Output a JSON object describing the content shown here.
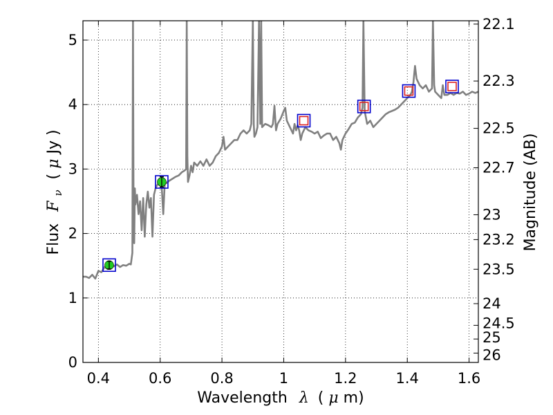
{
  "chart_data": {
    "type": "line",
    "xlabel": "Wavelength",
    "xlabel_math": "λ",
    "xlabel_unit_open": "(",
    "xlabel_unit_mu": "μ",
    "xlabel_unit_close": "m)",
    "ylabel": "Flux",
    "ylabel_math": "F",
    "ylabel_math_sub": "ν",
    "ylabel_unit_open": "( ",
    "ylabel_unit_mu": "μ",
    "ylabel_unit_close": "Jy )",
    "y2label": "Magnitude (AB)",
    "xlim": [
      0.35,
      1.63
    ],
    "ylim": [
      0,
      5.3
    ],
    "grid": true,
    "x_ticks": [
      0.4,
      0.6,
      0.8,
      1.0,
      1.2,
      1.4,
      1.6
    ],
    "x_tick_labels": [
      "0.4",
      "0.6",
      "0.8",
      "1",
      "1.2",
      "1.4",
      "1.6"
    ],
    "y_ticks": [
      0,
      1,
      2,
      3,
      4,
      5
    ],
    "y_tick_labels": [
      "0",
      "1",
      "2",
      "3",
      "4",
      "5"
    ],
    "y2_tick_labels": [
      "22.1",
      "22.3",
      "22.5",
      "22.7",
      "23",
      "23.2",
      "23.5",
      "24",
      "24.5",
      "25",
      "26"
    ],
    "y2_tick_magnitudes": [
      22.1,
      22.3,
      22.5,
      22.7,
      23.0,
      23.2,
      23.5,
      24.0,
      24.5,
      25.0,
      26.0
    ],
    "series": [
      {
        "color": "#808080",
        "points": [
          [
            0.35,
            1.33
          ],
          [
            0.36,
            1.33
          ],
          [
            0.37,
            1.31
          ],
          [
            0.38,
            1.36
          ],
          [
            0.39,
            1.3
          ],
          [
            0.4,
            1.42
          ],
          [
            0.41,
            1.4
          ],
          [
            0.42,
            1.48
          ],
          [
            0.43,
            1.45
          ],
          [
            0.44,
            1.52
          ],
          [
            0.45,
            1.49
          ],
          [
            0.46,
            1.52
          ],
          [
            0.47,
            1.48
          ],
          [
            0.48,
            1.51
          ],
          [
            0.49,
            1.5
          ],
          [
            0.5,
            1.53
          ],
          [
            0.505,
            1.52
          ],
          [
            0.51,
            1.7
          ],
          [
            0.512,
            5.3
          ],
          [
            0.514,
            2.1
          ],
          [
            0.516,
            1.85
          ],
          [
            0.518,
            2.7
          ],
          [
            0.52,
            2.45
          ],
          [
            0.525,
            2.6
          ],
          [
            0.53,
            2.3
          ],
          [
            0.535,
            2.5
          ],
          [
            0.54,
            2.05
          ],
          [
            0.545,
            2.55
          ],
          [
            0.55,
            1.95
          ],
          [
            0.555,
            2.45
          ],
          [
            0.56,
            2.65
          ],
          [
            0.565,
            2.4
          ],
          [
            0.57,
            2.55
          ],
          [
            0.575,
            1.95
          ],
          [
            0.58,
            2.6
          ],
          [
            0.585,
            2.7
          ],
          [
            0.59,
            2.75
          ],
          [
            0.595,
            2.78
          ],
          [
            0.6,
            2.78
          ],
          [
            0.605,
            2.72
          ],
          [
            0.61,
            2.3
          ],
          [
            0.615,
            2.8
          ],
          [
            0.62,
            2.78
          ],
          [
            0.63,
            2.82
          ],
          [
            0.64,
            2.85
          ],
          [
            0.65,
            2.88
          ],
          [
            0.66,
            2.9
          ],
          [
            0.67,
            2.95
          ],
          [
            0.68,
            2.98
          ],
          [
            0.684,
            3.0
          ],
          [
            0.686,
            5.3
          ],
          [
            0.688,
            3.2
          ],
          [
            0.69,
            2.8
          ],
          [
            0.695,
            2.9
          ],
          [
            0.7,
            3.05
          ],
          [
            0.705,
            2.95
          ],
          [
            0.71,
            3.1
          ],
          [
            0.72,
            3.05
          ],
          [
            0.73,
            3.12
          ],
          [
            0.74,
            3.05
          ],
          [
            0.75,
            3.15
          ],
          [
            0.76,
            3.05
          ],
          [
            0.77,
            3.1
          ],
          [
            0.78,
            3.2
          ],
          [
            0.79,
            3.25
          ],
          [
            0.8,
            3.35
          ],
          [
            0.805,
            3.5
          ],
          [
            0.81,
            3.3
          ],
          [
            0.82,
            3.35
          ],
          [
            0.83,
            3.4
          ],
          [
            0.84,
            3.45
          ],
          [
            0.85,
            3.45
          ],
          [
            0.86,
            3.55
          ],
          [
            0.87,
            3.6
          ],
          [
            0.88,
            3.55
          ],
          [
            0.89,
            3.6
          ],
          [
            0.895,
            3.7
          ],
          [
            0.9,
            5.3
          ],
          [
            0.903,
            3.7
          ],
          [
            0.905,
            3.5
          ],
          [
            0.91,
            3.55
          ],
          [
            0.915,
            3.65
          ],
          [
            0.92,
            5.3
          ],
          [
            0.924,
            3.7
          ],
          [
            0.927,
            5.3
          ],
          [
            0.93,
            3.65
          ],
          [
            0.94,
            3.7
          ],
          [
            0.95,
            3.68
          ],
          [
            0.96,
            3.65
          ],
          [
            0.965,
            3.7
          ],
          [
            0.97,
            3.98
          ],
          [
            0.975,
            3.6
          ],
          [
            0.98,
            3.7
          ],
          [
            0.99,
            3.78
          ],
          [
            1.0,
            3.9
          ],
          [
            1.005,
            3.95
          ],
          [
            1.01,
            3.75
          ],
          [
            1.02,
            3.65
          ],
          [
            1.03,
            3.55
          ],
          [
            1.035,
            3.7
          ],
          [
            1.04,
            3.6
          ],
          [
            1.045,
            3.68
          ],
          [
            1.05,
            3.6
          ],
          [
            1.055,
            3.45
          ],
          [
            1.06,
            3.55
          ],
          [
            1.07,
            3.65
          ],
          [
            1.08,
            3.6
          ],
          [
            1.09,
            3.58
          ],
          [
            1.1,
            3.55
          ],
          [
            1.11,
            3.58
          ],
          [
            1.12,
            3.48
          ],
          [
            1.13,
            3.52
          ],
          [
            1.14,
            3.55
          ],
          [
            1.15,
            3.55
          ],
          [
            1.16,
            3.45
          ],
          [
            1.17,
            3.5
          ],
          [
            1.18,
            3.4
          ],
          [
            1.185,
            3.3
          ],
          [
            1.19,
            3.45
          ],
          [
            1.2,
            3.55
          ],
          [
            1.21,
            3.62
          ],
          [
            1.22,
            3.7
          ],
          [
            1.23,
            3.72
          ],
          [
            1.24,
            3.8
          ],
          [
            1.25,
            3.85
          ],
          [
            1.255,
            3.95
          ],
          [
            1.258,
            5.3
          ],
          [
            1.262,
            3.9
          ],
          [
            1.27,
            3.7
          ],
          [
            1.28,
            3.75
          ],
          [
            1.29,
            3.65
          ],
          [
            1.3,
            3.7
          ],
          [
            1.31,
            3.75
          ],
          [
            1.32,
            3.8
          ],
          [
            1.33,
            3.85
          ],
          [
            1.34,
            3.88
          ],
          [
            1.35,
            3.9
          ],
          [
            1.36,
            3.92
          ],
          [
            1.37,
            3.95
          ],
          [
            1.38,
            4.0
          ],
          [
            1.39,
            4.05
          ],
          [
            1.4,
            4.1
          ],
          [
            1.41,
            4.15
          ],
          [
            1.415,
            4.2
          ],
          [
            1.42,
            4.35
          ],
          [
            1.425,
            4.6
          ],
          [
            1.43,
            4.4
          ],
          [
            1.44,
            4.3
          ],
          [
            1.45,
            4.25
          ],
          [
            1.46,
            4.3
          ],
          [
            1.47,
            4.2
          ],
          [
            1.48,
            4.25
          ],
          [
            1.483,
            5.3
          ],
          [
            1.487,
            4.3
          ],
          [
            1.49,
            4.2
          ],
          [
            1.5,
            4.15
          ],
          [
            1.51,
            4.1
          ],
          [
            1.515,
            4.3
          ],
          [
            1.52,
            4.15
          ],
          [
            1.53,
            4.15
          ],
          [
            1.54,
            4.18
          ],
          [
            1.55,
            4.15
          ],
          [
            1.56,
            4.18
          ],
          [
            1.57,
            4.17
          ],
          [
            1.58,
            4.2
          ],
          [
            1.59,
            4.15
          ],
          [
            1.6,
            4.17
          ],
          [
            1.61,
            4.2
          ],
          [
            1.62,
            4.18
          ],
          [
            1.63,
            4.2
          ]
        ]
      }
    ],
    "model_boxes_color": "#0000cc",
    "model_boxes": [
      {
        "x": 0.435,
        "y": 1.51
      },
      {
        "x": 0.605,
        "y": 2.8
      },
      {
        "x": 1.065,
        "y": 3.75
      },
      {
        "x": 1.26,
        "y": 3.97
      },
      {
        "x": 1.405,
        "y": 4.21
      },
      {
        "x": 1.545,
        "y": 4.28
      }
    ],
    "photometry_inner_color": "#dd2222",
    "photometry_inner": [
      {
        "x": 1.065,
        "y": 3.75
      },
      {
        "x": 1.26,
        "y": 3.97
      },
      {
        "x": 1.405,
        "y": 4.21
      },
      {
        "x": 1.545,
        "y": 4.28
      }
    ],
    "photometry_points_color": "#22cc22",
    "photometry_points": [
      {
        "x": 0.435,
        "y": 1.51,
        "err": 0.06
      },
      {
        "x": 0.605,
        "y": 2.8,
        "err": 0.08
      }
    ]
  }
}
